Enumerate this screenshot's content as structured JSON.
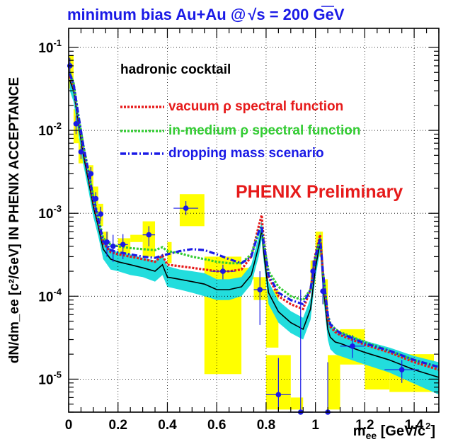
{
  "colors": {
    "title": "#1a1ae6",
    "preliminary": "#e61a1a",
    "vacuum": "#e61a1a",
    "medium": "#33cc33",
    "dropping": "#1a1ae6",
    "cocktail": "#000000",
    "cocktail_band": "#22dddd",
    "syst_box": "#ffff00",
    "data_point": "#1a1ae6"
  },
  "chart_data": {
    "type": "scatter",
    "title": {
      "main": "minimum bias Au+Au  @",
      "sqrt": "s",
      "tail": " = 200 GeV"
    },
    "xlabel": {
      "main": "m",
      "sub": "ee",
      "units": " [GeV/c",
      "sup": "2",
      "close": "]"
    },
    "ylabel": "dN/dm_ee [c²/GeV] IN PHENIX ACCEPTANCE",
    "x_ticks": [
      {
        "v": 0,
        "label": "0"
      },
      {
        "v": 0.2,
        "label": "0.2"
      },
      {
        "v": 0.4,
        "label": "0.4"
      },
      {
        "v": 0.6,
        "label": "0.6"
      },
      {
        "v": 0.8,
        "label": "0.8"
      },
      {
        "v": 1.0,
        "label": "1"
      },
      {
        "v": 1.2,
        "label": "1.2"
      },
      {
        "v": 1.4,
        "label": "1.4"
      }
    ],
    "y_ticks": [
      {
        "exp": -5,
        "base": "10",
        "sup": "-5"
      },
      {
        "exp": -4,
        "base": "10",
        "sup": "-4"
      },
      {
        "exp": -3,
        "base": "10",
        "sup": "-3"
      },
      {
        "exp": -2,
        "base": "10",
        "sup": "-2"
      },
      {
        "exp": -1,
        "base": "10",
        "sup": "-1"
      }
    ],
    "xlim": [
      0,
      1.5
    ],
    "ylim": [
      4e-06,
      0.17
    ],
    "log_y": true,
    "grid": true,
    "legend": {
      "title": "hadronic cocktail",
      "placement": "top-right",
      "entries": [
        {
          "text": "vacuum ρ spectral function",
          "color": "vacuum",
          "style": "dotted"
        },
        {
          "text": "in-medium ρ spectral function",
          "color": "medium",
          "style": "dotted"
        },
        {
          "text": "dropping mass scenario",
          "color": "dropping",
          "style": "dashdot"
        }
      ]
    },
    "annotation": "PHENIX Preliminary",
    "series": [
      {
        "color": "cocktail",
        "style": "solid",
        "x": [
          0.005,
          0.02,
          0.04,
          0.06,
          0.08,
          0.1,
          0.12,
          0.14,
          0.17,
          0.2,
          0.25,
          0.3,
          0.35,
          0.38,
          0.4,
          0.45,
          0.5,
          0.55,
          0.6,
          0.65,
          0.7,
          0.74,
          0.77,
          0.782,
          0.79,
          0.81,
          0.85,
          0.9,
          0.95,
          0.98,
          1.0,
          1.019,
          1.03,
          1.05,
          1.06,
          1.08,
          1.1,
          1.2,
          1.3,
          1.4,
          1.5
        ],
        "y": [
          0.04,
          0.03,
          0.012,
          0.005,
          0.0025,
          0.0012,
          0.0007,
          0.00037,
          0.00028,
          0.00026,
          0.00024,
          0.00022,
          0.0002,
          0.00024,
          0.00017,
          0.00016,
          0.00015,
          0.00014,
          0.00012,
          0.00012,
          0.00013,
          0.00018,
          0.0004,
          0.00062,
          0.00035,
          0.00011,
          6.5e-05,
          4.8e-05,
          4e-05,
          7e-05,
          0.00022,
          0.00045,
          0.00015,
          4e-05,
          3.2e-05,
          2.8e-05,
          2.7e-05,
          2.1e-05,
          1.7e-05,
          1.3e-05,
          1.05e-05
        ]
      },
      {
        "color": "vacuum",
        "style": "dotted",
        "x": [
          0.005,
          0.02,
          0.04,
          0.06,
          0.08,
          0.1,
          0.12,
          0.14,
          0.17,
          0.2,
          0.25,
          0.3,
          0.35,
          0.38,
          0.4,
          0.45,
          0.5,
          0.55,
          0.6,
          0.65,
          0.7,
          0.74,
          0.77,
          0.782,
          0.79,
          0.81,
          0.85,
          0.9,
          0.95,
          0.98,
          1.0,
          1.019,
          1.03,
          1.05,
          1.06,
          1.08,
          1.1,
          1.2,
          1.3,
          1.4,
          1.5
        ],
        "y": [
          0.045,
          0.034,
          0.014,
          0.006,
          0.003,
          0.0014,
          0.0008,
          0.00044,
          0.00034,
          0.00032,
          0.0003,
          0.00028,
          0.00026,
          0.00031,
          0.00024,
          0.00023,
          0.00022,
          0.00021,
          0.0002,
          0.0002,
          0.00021,
          0.0003,
          0.0007,
          0.00095,
          0.0005,
          0.00017,
          0.0001,
          8e-05,
          7e-05,
          0.00012,
          0.00032,
          0.00055,
          0.0002,
          5.5e-05,
          4.3e-05,
          3.7e-05,
          3.4e-05,
          2.6e-05,
          2.1e-05,
          1.6e-05,
          1.3e-05
        ]
      },
      {
        "color": "medium",
        "style": "dotted",
        "x": [
          0.005,
          0.02,
          0.04,
          0.06,
          0.08,
          0.1,
          0.12,
          0.14,
          0.17,
          0.2,
          0.25,
          0.3,
          0.35,
          0.38,
          0.4,
          0.45,
          0.5,
          0.55,
          0.6,
          0.65,
          0.7,
          0.74,
          0.77,
          0.782,
          0.79,
          0.81,
          0.85,
          0.9,
          0.95,
          0.98,
          1.0,
          1.019,
          1.03,
          1.05,
          1.06,
          1.08,
          1.1,
          1.2,
          1.3,
          1.4,
          1.5
        ],
        "y": [
          0.05,
          0.037,
          0.015,
          0.0065,
          0.0033,
          0.0016,
          0.0009,
          0.0005,
          0.00042,
          0.0004,
          0.00038,
          0.00037,
          0.00036,
          0.00039,
          0.00035,
          0.00033,
          0.0003,
          0.00028,
          0.00026,
          0.00025,
          0.00025,
          0.00032,
          0.0006,
          0.0007,
          0.00045,
          0.0002,
          0.00013,
          0.0001,
          9e-05,
          0.00012,
          0.0003,
          0.0005,
          0.0002,
          6e-05,
          4.7e-05,
          4e-05,
          3.7e-05,
          2.8e-05,
          2.2e-05,
          1.7e-05,
          1.4e-05
        ]
      },
      {
        "color": "dropping",
        "style": "dashdot",
        "x": [
          0.005,
          0.02,
          0.04,
          0.06,
          0.08,
          0.1,
          0.12,
          0.14,
          0.17,
          0.2,
          0.25,
          0.3,
          0.35,
          0.38,
          0.4,
          0.45,
          0.5,
          0.55,
          0.6,
          0.65,
          0.7,
          0.74,
          0.77,
          0.782,
          0.79,
          0.81,
          0.85,
          0.9,
          0.95,
          0.98,
          1.0,
          1.019,
          1.03,
          1.05,
          1.06,
          1.08,
          1.1,
          1.2,
          1.3,
          1.4,
          1.5
        ],
        "y": [
          0.048,
          0.036,
          0.015,
          0.0064,
          0.0032,
          0.0015,
          0.00085,
          0.00046,
          0.00036,
          0.00034,
          0.00032,
          0.0003,
          0.00029,
          0.00031,
          0.00032,
          0.00035,
          0.00037,
          0.00036,
          0.00032,
          0.00028,
          0.00025,
          0.0003,
          0.0006,
          0.0007,
          0.00045,
          0.00018,
          0.00011,
          9e-05,
          8e-05,
          0.00012,
          0.0003,
          0.0005,
          0.0002,
          6e-05,
          4.6e-05,
          4e-05,
          3.6e-05,
          2.7e-05,
          2.2e-05,
          1.7e-05,
          1.4e-05
        ]
      }
    ],
    "cocktail_band": {
      "x": [
        0.005,
        0.02,
        0.04,
        0.06,
        0.08,
        0.1,
        0.12,
        0.14,
        0.17,
        0.2,
        0.25,
        0.3,
        0.35,
        0.38,
        0.4,
        0.45,
        0.5,
        0.55,
        0.6,
        0.65,
        0.7,
        0.74,
        0.77,
        0.782,
        0.79,
        0.81,
        0.85,
        0.9,
        0.95,
        0.98,
        1.0,
        1.019,
        1.03,
        1.05,
        1.06,
        1.08,
        1.1,
        1.2,
        1.3,
        1.4,
        1.5
      ],
      "lo": [
        0.03,
        0.022,
        0.009,
        0.0038,
        0.0019,
        0.0009,
        0.00053,
        0.00028,
        0.00021,
        0.0002,
        0.00018,
        0.00017,
        0.00015,
        0.00018,
        0.00013,
        0.00012,
        0.00011,
        0.0001,
        9e-05,
        9e-05,
        0.0001,
        0.00014,
        0.0003,
        0.00048,
        0.00027,
        8e-05,
        4.8e-05,
        3.6e-05,
        3e-05,
        5.2e-05,
        0.00017,
        0.00035,
        0.00011,
        3e-05,
        2.3e-05,
        2e-05,
        1.9e-05,
        1.5e-05,
        1.2e-05,
        8.8e-06,
        6.5e-06
      ],
      "hi": [
        0.052,
        0.04,
        0.016,
        0.0066,
        0.0033,
        0.0016,
        0.00093,
        0.00049,
        0.00037,
        0.00034,
        0.00032,
        0.00029,
        0.00027,
        0.00032,
        0.00023,
        0.00021,
        0.0002,
        0.00019,
        0.00016,
        0.00016,
        0.00017,
        0.00024,
        0.00053,
        0.00082,
        0.00046,
        0.00015,
        8.8e-05,
        6.6e-05,
        5.5e-05,
        9.4e-05,
        0.00029,
        0.0006,
        0.0002,
        5.5e-05,
        4.4e-05,
        3.9e-05,
        3.7e-05,
        2.9e-05,
        2.4e-05,
        1.9e-05,
        1.6e-05
      ]
    },
    "systematic_boxes": [
      {
        "x": [
          0.0,
          0.02
        ],
        "y": [
          0.032,
          0.08
        ]
      },
      {
        "x": [
          0.02,
          0.04
        ],
        "y": [
          0.007,
          0.018
        ]
      },
      {
        "x": [
          0.04,
          0.06
        ],
        "y": [
          0.004,
          0.008
        ]
      },
      {
        "x": [
          0.08,
          0.1
        ],
        "y": [
          0.0019,
          0.0038
        ]
      },
      {
        "x": [
          0.1,
          0.12
        ],
        "y": [
          0.0011,
          0.0021
        ]
      },
      {
        "x": [
          0.12,
          0.14
        ],
        "y": [
          0.0007,
          0.0013
        ]
      },
      {
        "x": [
          0.14,
          0.16
        ],
        "y": [
          0.0003,
          0.0006
        ]
      },
      {
        "x": [
          0.2,
          0.25
        ],
        "y": [
          0.00025,
          0.0005
        ]
      },
      {
        "x": [
          0.25,
          0.3
        ],
        "y": [
          0.00045,
          0.00055
        ]
      },
      {
        "x": [
          0.3,
          0.35
        ],
        "y": [
          0.0003,
          0.0008
        ]
      },
      {
        "x": [
          0.4,
          0.4
        ],
        "y": [
          0.00025,
          0.00045
        ]
      },
      {
        "x": [
          0.45,
          0.55
        ],
        "y": [
          0.0007,
          0.0017
        ]
      },
      {
        "x": [
          0.55,
          0.7
        ],
        "y": [
          1.15e-05,
          0.0003
        ]
      },
      {
        "x": [
          0.7,
          0.75
        ],
        "y": [
          0.00016,
          0.00022
        ]
      },
      {
        "x": [
          0.75,
          0.8
        ],
        "y": [
          9e-05,
          0.00017
        ]
      },
      {
        "x": [
          0.8,
          0.9
        ],
        "y": [
          4.3e-06,
          1.95e-05
        ]
      },
      {
        "x": [
          0.8,
          0.85
        ],
        "y": [
          2.4e-05,
          0.00012
        ]
      },
      {
        "x": [
          0.9,
          0.95
        ],
        "y": [
          4.3e-06,
          6e-06
        ]
      },
      {
        "x": [
          0.98,
          1.0
        ],
        "y": [
          0.00014,
          0.00027
        ]
      },
      {
        "x": [
          1.0,
          1.03
        ],
        "y": [
          0.0003,
          0.0006
        ]
      },
      {
        "x": [
          1.03,
          1.05
        ],
        "y": [
          8e-05,
          0.00016
        ]
      },
      {
        "x": [
          1.05,
          1.1
        ],
        "y": [
          4.3e-06,
          1.95e-05
        ]
      },
      {
        "x": [
          1.1,
          1.2
        ],
        "y": [
          1.5e-05,
          4e-05
        ]
      },
      {
        "x": [
          1.2,
          1.3
        ],
        "y": [
          7.5e-06,
          1.75e-05
        ]
      },
      {
        "x": [
          1.3,
          1.48
        ],
        "y": [
          7e-06,
          2e-05
        ]
      }
    ],
    "data_points": [
      {
        "x": 0.005,
        "y": 0.06,
        "xerr": 0.005,
        "ylo": 0.045,
        "yhi": 0.075
      },
      {
        "x": 0.03,
        "y": 0.012,
        "xerr": 0.01,
        "ylo": 0.009,
        "yhi": 0.015
      },
      {
        "x": 0.05,
        "y": 0.0055,
        "xerr": 0.01,
        "ylo": 0.0045,
        "yhi": 0.0065
      },
      {
        "x": 0.09,
        "y": 0.003,
        "xerr": 0.01,
        "ylo": 0.0025,
        "yhi": 0.0036
      },
      {
        "x": 0.11,
        "y": 0.0015,
        "xerr": 0.01,
        "ylo": 0.0012,
        "yhi": 0.0018
      },
      {
        "x": 0.13,
        "y": 0.00098,
        "xerr": 0.01,
        "ylo": 0.0008,
        "yhi": 0.0012
      },
      {
        "x": 0.155,
        "y": 0.00045,
        "xerr": 0.015,
        "ylo": 0.0003,
        "yhi": 0.0006
      },
      {
        "x": 0.18,
        "y": 0.0004,
        "xerr": 0.02,
        "ylo": 0.00026,
        "yhi": 0.00055
      },
      {
        "x": 0.22,
        "y": 0.00042,
        "xerr": 0.02,
        "ylo": 0.00028,
        "yhi": 0.00056
      },
      {
        "x": 0.325,
        "y": 0.00055,
        "xerr": 0.025,
        "ylo": 0.0004,
        "yhi": 0.0007
      },
      {
        "x": 0.475,
        "y": 0.00115,
        "xerr": 0.05,
        "ylo": 0.00095,
        "yhi": 0.0014
      },
      {
        "x": 0.625,
        "y": 0.0002,
        "xerr": 0.05,
        "ylo": 0.00016,
        "yhi": 0.00024
      },
      {
        "x": 0.775,
        "y": 0.00012,
        "xerr": 0.025,
        "ylo": 4.5e-05,
        "yhi": 0.0002
      },
      {
        "x": 0.85,
        "y": 6.5e-06,
        "xerr": 0.05,
        "ylo": 4e-06,
        "yhi": 1.8e-05
      },
      {
        "x": 0.94,
        "y": 4e-06,
        "xerr": 0.05,
        "ylo": 4e-06,
        "yhi": 0.00012
      },
      {
        "x": 0.99,
        "y": 0.0002,
        "xerr": 0.01,
        "ylo": 0.00014,
        "yhi": 0.00027
      },
      {
        "x": 1.03,
        "y": 0.000115,
        "xerr": 0.01,
        "ylo": 8e-05,
        "yhi": 0.00016
      },
      {
        "x": 1.05,
        "y": 4e-06,
        "xerr": 0.02,
        "ylo": 4e-06,
        "yhi": 1.6e-05
      },
      {
        "x": 1.15,
        "y": 2.5e-05,
        "xerr": 0.05,
        "ylo": 1.8e-05,
        "yhi": 3.4e-05
      },
      {
        "x": 1.35,
        "y": 1.3e-05,
        "xerr": 0.07,
        "ylo": 9e-06,
        "yhi": 1.7e-05
      }
    ]
  }
}
